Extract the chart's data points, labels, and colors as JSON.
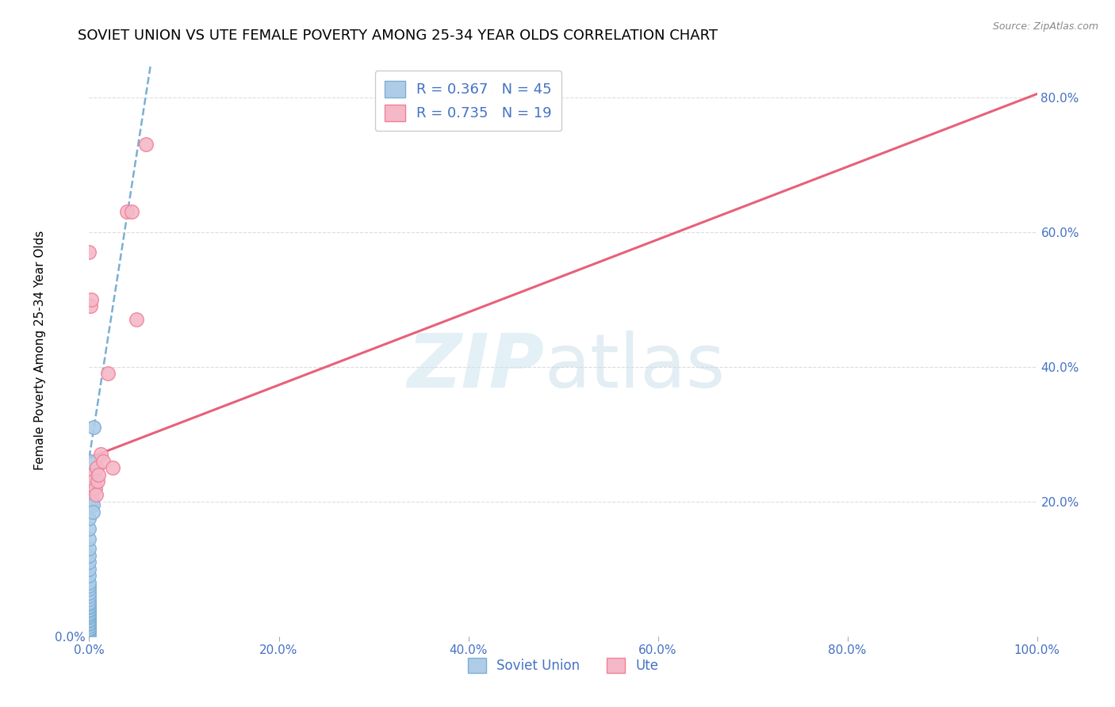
{
  "title": "SOVIET UNION VS UTE FEMALE POVERTY AMONG 25-34 YEAR OLDS CORRELATION CHART",
  "source": "Source: ZipAtlas.com",
  "ylabel": "Female Poverty Among 25-34 Year Olds",
  "xlim": [
    0,
    1.0
  ],
  "ylim": [
    0,
    0.85
  ],
  "x_ticks": [
    0,
    0.2,
    0.4,
    0.6,
    0.8,
    1.0
  ],
  "y_ticks": [
    0,
    0.2,
    0.4,
    0.6,
    0.8
  ],
  "soviet_scatter_x": [
    0.0,
    0.0,
    0.0,
    0.0,
    0.0,
    0.0,
    0.0,
    0.0,
    0.0,
    0.0,
    0.0,
    0.0,
    0.0,
    0.0,
    0.0,
    0.0,
    0.0,
    0.0,
    0.0,
    0.0,
    0.0,
    0.0,
    0.0,
    0.0,
    0.0,
    0.0,
    0.0,
    0.0,
    0.0,
    0.0,
    0.0,
    0.0,
    0.0,
    0.0,
    0.001,
    0.001,
    0.001,
    0.002,
    0.002,
    0.002,
    0.003,
    0.003,
    0.004,
    0.004,
    0.005
  ],
  "soviet_scatter_y": [
    0.0,
    0.005,
    0.008,
    0.01,
    0.012,
    0.015,
    0.018,
    0.02,
    0.023,
    0.025,
    0.028,
    0.03,
    0.033,
    0.035,
    0.038,
    0.04,
    0.043,
    0.045,
    0.048,
    0.05,
    0.055,
    0.06,
    0.065,
    0.07,
    0.075,
    0.08,
    0.09,
    0.1,
    0.11,
    0.12,
    0.13,
    0.145,
    0.16,
    0.175,
    0.22,
    0.24,
    0.26,
    0.2,
    0.21,
    0.23,
    0.215,
    0.205,
    0.195,
    0.185,
    0.31
  ],
  "ute_scatter_x": [
    0.0,
    0.001,
    0.002,
    0.003,
    0.004,
    0.005,
    0.006,
    0.007,
    0.008,
    0.009,
    0.01,
    0.012,
    0.015,
    0.02,
    0.025,
    0.04,
    0.045,
    0.05,
    0.06
  ],
  "ute_scatter_y": [
    0.57,
    0.49,
    0.5,
    0.22,
    0.24,
    0.23,
    0.22,
    0.21,
    0.25,
    0.23,
    0.24,
    0.27,
    0.26,
    0.39,
    0.25,
    0.63,
    0.63,
    0.47,
    0.73
  ],
  "soviet_trend_x": [
    0.0,
    0.065
  ],
  "soviet_trend_y": [
    0.265,
    0.85
  ],
  "ute_trend_x": [
    0.0,
    1.0
  ],
  "ute_trend_y": [
    0.265,
    0.805
  ],
  "soviet_color": "#7bafd4",
  "soviet_fill": "#aecce8",
  "ute_color": "#f08098",
  "ute_fill": "#f4b8c8",
  "trendline_soviet_color": "#7bafd4",
  "trendline_ute_color": "#e8607a",
  "legend_R_soviet": "R = 0.367",
  "legend_N_soviet": "N = 45",
  "legend_R_ute": "R = 0.735",
  "legend_N_ute": "N = 19",
  "legend_label_soviet": "Soviet Union",
  "legend_label_ute": "Ute",
  "title_fontsize": 13,
  "axis_label_fontsize": 11,
  "tick_fontsize": 11
}
